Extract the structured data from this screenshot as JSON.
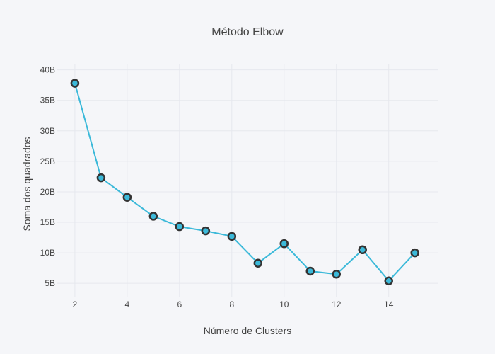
{
  "chart_data": {
    "type": "line",
    "title": "Método Elbow",
    "xlabel": "Número de Clusters",
    "ylabel": "Soma dos quadrados",
    "x": [
      2,
      3,
      4,
      5,
      6,
      7,
      8,
      9,
      10,
      11,
      12,
      13,
      14,
      15
    ],
    "y": [
      37.8,
      22.3,
      19.1,
      16.0,
      14.3,
      13.6,
      12.7,
      8.3,
      11.5,
      7.0,
      6.5,
      10.5,
      5.4,
      10.0
    ],
    "xlim": [
      1.3,
      15.9
    ],
    "ylim": [
      2.7,
      41.0
    ],
    "xticks": [
      2,
      4,
      6,
      8,
      10,
      12,
      14
    ],
    "yticks": [
      5,
      10,
      15,
      20,
      25,
      30,
      35,
      40
    ],
    "ytick_labels": [
      "5B",
      "10B",
      "15B",
      "20B",
      "25B",
      "30B",
      "35B",
      "40B"
    ],
    "grid": true,
    "line_color": "#3bb9d9",
    "marker_fill": "#3bb9d9",
    "marker_edge": "#333333"
  }
}
